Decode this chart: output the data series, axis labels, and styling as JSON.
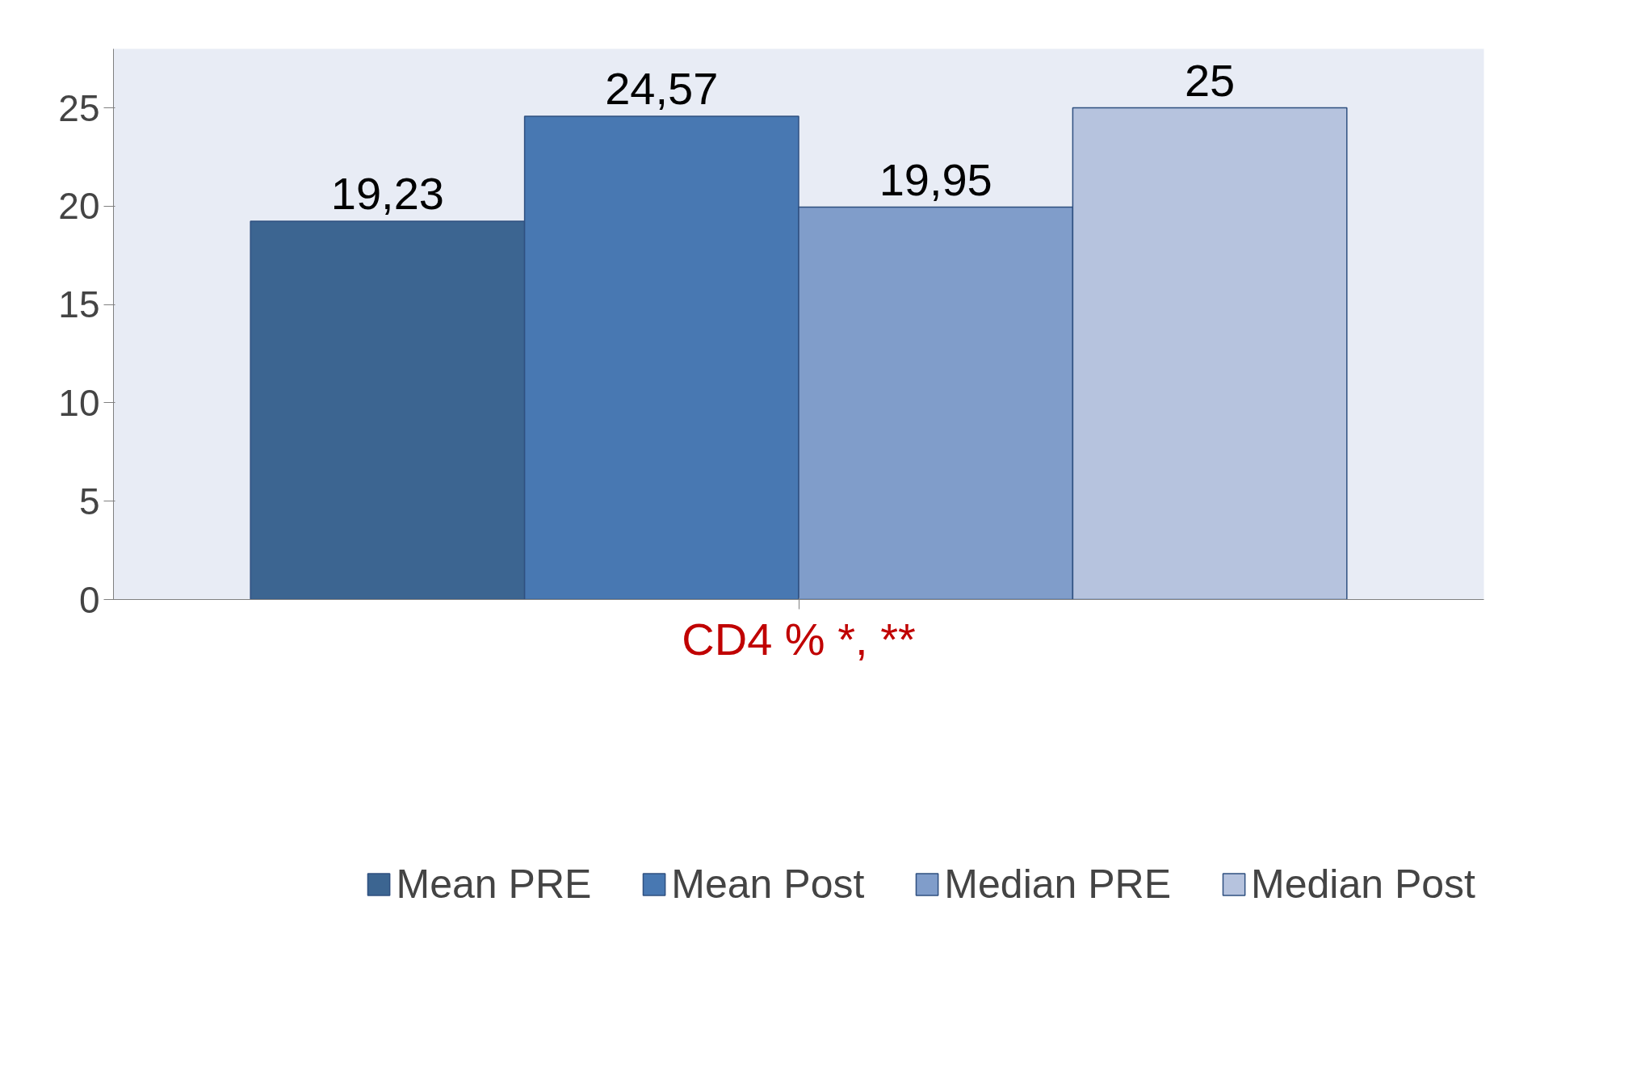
{
  "chart_data": {
    "type": "bar",
    "xlabel": "CD4 % *, **",
    "categories": [
      null
    ],
    "series": [
      {
        "name": "Mean PRE",
        "color": "#3c6591",
        "values": [
          19.23
        ],
        "value_labels": [
          "19,23"
        ]
      },
      {
        "name": "Mean Post",
        "color": "#4878b2",
        "values": [
          24.57
        ],
        "value_labels": [
          "24,57"
        ]
      },
      {
        "name": "Median PRE",
        "color": "#809dca",
        "values": [
          19.95
        ],
        "value_labels": [
          "19,95"
        ]
      },
      {
        "name": "Median Post",
        "color": "#b6c3de",
        "values": [
          25
        ],
        "value_labels": [
          "25"
        ]
      }
    ],
    "ylim": [
      0,
      28
    ],
    "yticks": [
      0,
      5,
      10,
      15,
      20,
      25
    ],
    "grid": false,
    "legend": "bottom"
  }
}
